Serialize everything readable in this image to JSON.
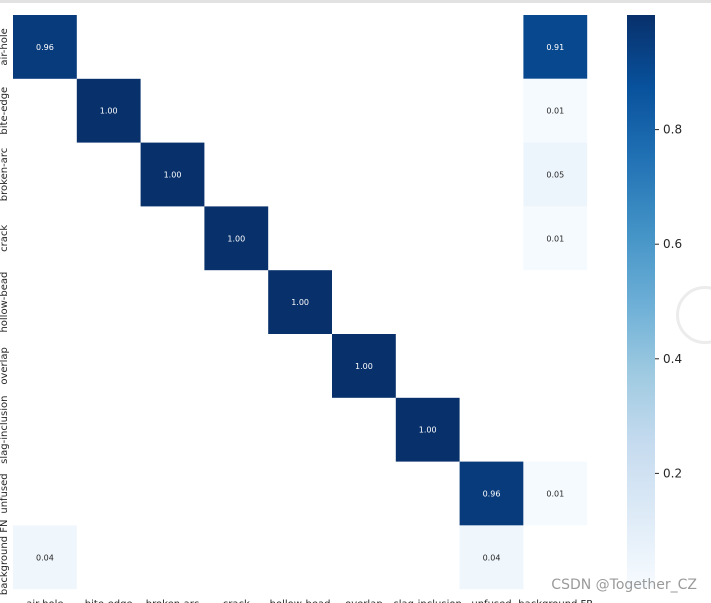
{
  "watermark": "CSDN @Together_CZ",
  "chart_data": {
    "type": "heatmap",
    "row_labels": [
      "air-hole",
      "bite-edge",
      "broken-arc",
      "crack",
      "hollow-bead",
      "overlap",
      "slag-inclusion",
      "unfused",
      "background FN"
    ],
    "col_labels": [
      "air-hole",
      "bite-edge",
      "broken-arc",
      "crack",
      "hollow-bead",
      "overlap",
      "slag-inclusion",
      "unfused",
      "background FP"
    ],
    "values": [
      [
        0.96,
        null,
        null,
        null,
        null,
        null,
        null,
        null,
        0.91
      ],
      [
        null,
        1.0,
        null,
        null,
        null,
        null,
        null,
        null,
        0.01
      ],
      [
        null,
        null,
        1.0,
        null,
        null,
        null,
        null,
        null,
        0.05
      ],
      [
        null,
        null,
        null,
        1.0,
        null,
        null,
        null,
        null,
        0.01
      ],
      [
        null,
        null,
        null,
        null,
        1.0,
        null,
        null,
        null,
        null
      ],
      [
        null,
        null,
        null,
        null,
        null,
        1.0,
        null,
        null,
        null
      ],
      [
        null,
        null,
        null,
        null,
        null,
        null,
        1.0,
        null,
        null
      ],
      [
        null,
        null,
        null,
        null,
        null,
        null,
        null,
        0.96,
        0.01
      ],
      [
        0.04,
        null,
        null,
        null,
        null,
        null,
        null,
        0.04,
        null
      ]
    ],
    "colormap": "Blues",
    "vmin": 0,
    "vmax": 1,
    "colorbar_ticks": [
      "0.2",
      "0.4",
      "0.6",
      "0.8"
    ]
  }
}
